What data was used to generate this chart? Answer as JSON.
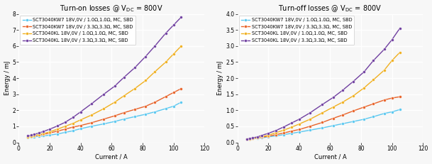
{
  "left_title": "Turn-on losses @ V$_\\mathrm{DC}$ = 800V",
  "right_title": "Turn-off losses @ V$_\\mathrm{DC}$ = 800V",
  "xlabel": "Current / A",
  "ylabel": "Energy / mJ",
  "colors": {
    "blue": "#5BC8F0",
    "orange": "#E8632A",
    "yellow": "#F0B020",
    "purple": "#7040A0"
  },
  "legend_labels": [
    "SCT3040KW7 18V,0V / 1.0Ω,1.0Ω, MC, SBD",
    "SCT3040KW7 18V,0V / 3.3Ω,3.3Ω, MC, SBD",
    "SCT3040KL 18V,0V / 1.0Ω,1.0Ω, MC, SBD",
    "SCT3040KL 18V,0V / 3.3Ω,3.3Ω, MC, SBD"
  ],
  "current_x": [
    6,
    8,
    10,
    13,
    16,
    20,
    25,
    30,
    35,
    40,
    47,
    55,
    62,
    68,
    75,
    82,
    88,
    95,
    100,
    105
  ],
  "turn_on": {
    "blue": [
      0.3,
      0.32,
      0.35,
      0.38,
      0.4,
      0.45,
      0.52,
      0.62,
      0.72,
      0.85,
      1.0,
      1.15,
      1.3,
      1.45,
      1.6,
      1.75,
      1.9,
      2.1,
      2.25,
      2.5
    ],
    "orange": [
      0.35,
      0.37,
      0.4,
      0.45,
      0.5,
      0.58,
      0.7,
      0.82,
      0.95,
      1.05,
      1.22,
      1.45,
      1.65,
      1.85,
      2.05,
      2.25,
      2.5,
      2.85,
      3.1,
      3.35
    ],
    "yellow": [
      0.35,
      0.38,
      0.42,
      0.48,
      0.55,
      0.65,
      0.82,
      1.0,
      1.18,
      1.4,
      1.7,
      2.1,
      2.5,
      2.9,
      3.35,
      3.85,
      4.4,
      5.0,
      5.5,
      6.0
    ],
    "purple": [
      0.4,
      0.45,
      0.5,
      0.58,
      0.68,
      0.82,
      1.02,
      1.25,
      1.55,
      1.9,
      2.4,
      3.0,
      3.5,
      4.05,
      4.65,
      5.35,
      6.0,
      6.8,
      7.3,
      7.8
    ]
  },
  "turn_off": {
    "blue": [
      0.1,
      0.11,
      0.12,
      0.13,
      0.14,
      0.17,
      0.2,
      0.24,
      0.28,
      0.32,
      0.38,
      0.45,
      0.52,
      0.58,
      0.65,
      0.72,
      0.8,
      0.9,
      0.95,
      1.02
    ],
    "orange": [
      0.1,
      0.11,
      0.12,
      0.14,
      0.16,
      0.19,
      0.24,
      0.29,
      0.35,
      0.4,
      0.5,
      0.62,
      0.75,
      0.85,
      0.98,
      1.1,
      1.2,
      1.32,
      1.38,
      1.42
    ],
    "yellow": [
      0.1,
      0.11,
      0.13,
      0.15,
      0.18,
      0.22,
      0.3,
      0.38,
      0.47,
      0.57,
      0.72,
      0.92,
      1.1,
      1.25,
      1.45,
      1.7,
      1.95,
      2.25,
      2.55,
      2.8
    ],
    "purple": [
      0.1,
      0.12,
      0.14,
      0.17,
      0.22,
      0.28,
      0.37,
      0.48,
      0.6,
      0.72,
      0.92,
      1.18,
      1.4,
      1.62,
      1.9,
      2.2,
      2.55,
      2.9,
      3.2,
      3.55
    ]
  },
  "left_ylim": [
    0,
    8
  ],
  "right_ylim": [
    0,
    4
  ],
  "left_yticks": [
    0,
    1,
    2,
    3,
    4,
    5,
    6,
    7,
    8
  ],
  "right_yticks": [
    0,
    0.5,
    1.0,
    1.5,
    2.0,
    2.5,
    3.0,
    3.5,
    4.0
  ],
  "xlim": [
    0,
    120
  ],
  "xticks": [
    0,
    20,
    40,
    60,
    80,
    100,
    120
  ],
  "bg_color": "#f7f7f7",
  "grid_color": "#ffffff",
  "title_fontsize": 7.0,
  "label_fontsize": 6.0,
  "tick_fontsize": 5.5,
  "legend_fontsize": 4.8
}
